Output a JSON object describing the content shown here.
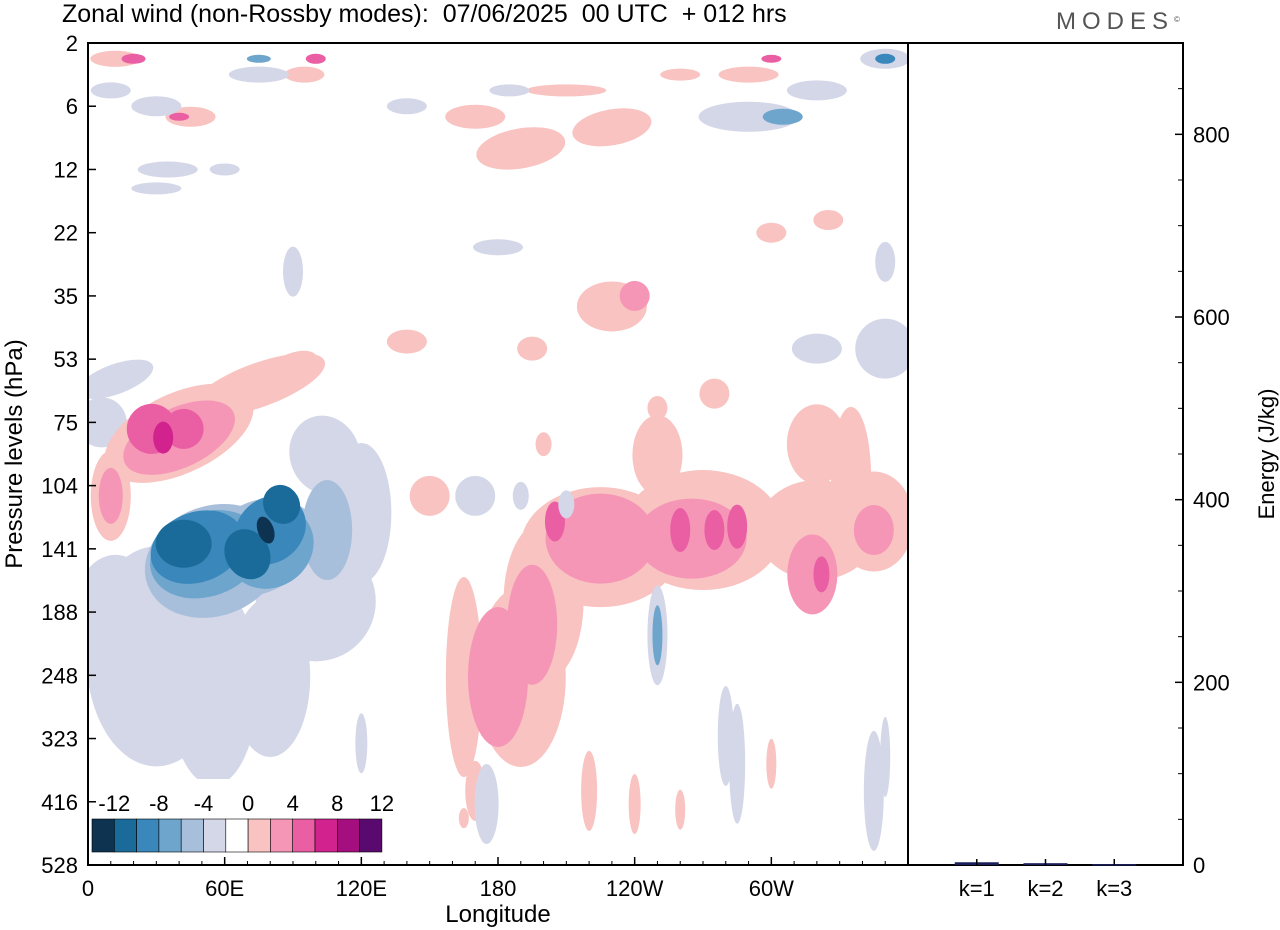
{
  "header": {
    "title": "Zonal wind (non-Rossby modes):  07/06/2025  00 UTC  + 012 hrs",
    "logo": "MODES",
    "logo_mark": "©"
  },
  "chart_data": [
    {
      "type": "heatmap",
      "xlabel": "Longitude",
      "ylabel": "Pressure levels (hPa)",
      "x_ticks": [
        "0",
        "60E",
        "120E",
        "180",
        "120W",
        "60W"
      ],
      "y_ticks": [
        "2",
        "6",
        "12",
        "22",
        "35",
        "53",
        "75",
        "104",
        "141",
        "188",
        "248",
        "323",
        "416",
        "528"
      ],
      "y_scale": "pressure levels (stretched)",
      "colorbar": {
        "labels": [
          "-12",
          "-8",
          "-4",
          "0",
          "4",
          "8",
          "12"
        ],
        "levels": [
          -14,
          -12,
          -10,
          -8,
          -6,
          -4,
          -2,
          2,
          4,
          6,
          8,
          10,
          12,
          14
        ],
        "colors": [
          "#0d3350",
          "#1a6a9a",
          "#3a87bb",
          "#6ea5cc",
          "#a8bfdc",
          "#d4d7e8",
          "#ffffff",
          "#f8c3c0",
          "#f596b6",
          "#ea5ea3",
          "#d2228e",
          "#a50e7e",
          "#5a0a6e"
        ]
      },
      "features": [
        {
          "name": "negative core 50-100E",
          "lon_range": [
            25,
            100
          ],
          "p_range": [
            95,
            210
          ],
          "min_value": -12
        },
        {
          "name": "positive core 40E",
          "lon_range": [
            30,
            55
          ],
          "p_range": [
            65,
            100
          ],
          "max_value": 10
        },
        {
          "name": "positive band 170W-30W",
          "lon_range": [
            185,
            340
          ],
          "p_range": [
            95,
            330
          ],
          "max_value": 8
        }
      ]
    },
    {
      "type": "bar",
      "categories": [
        "k=1",
        "k=2",
        "k=3"
      ],
      "values": [
        3,
        2,
        1
      ],
      "ylabel": "Energy (J/kg)",
      "ylim": [
        0,
        900
      ],
      "y_ticks": [
        0,
        200,
        400,
        600,
        800
      ],
      "bar_color": "#1a1f5c"
    }
  ]
}
